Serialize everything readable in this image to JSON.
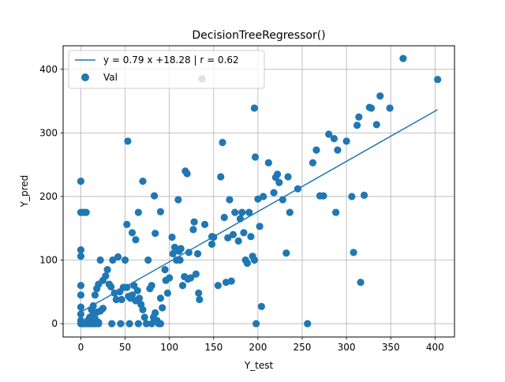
{
  "chart_data": {
    "type": "scatter",
    "title": "DecisionTreeRegressor()",
    "xlabel": "Y_test",
    "ylabel": "Y_pred",
    "xlim": [
      -20,
      422
    ],
    "ylim": [
      -21,
      437
    ],
    "xticks": [
      0,
      50,
      100,
      150,
      200,
      250,
      300,
      350,
      400
    ],
    "yticks": [
      0,
      100,
      200,
      300,
      400
    ],
    "grid": true,
    "legend_position": "top-left",
    "colors": {
      "series": "#1f77b4",
      "grid": "#b0b0b0"
    },
    "series": [
      {
        "name": "y = 0.79 x +18.28 | r = 0.62",
        "kind": "line",
        "x": [
          0,
          403
        ],
        "y": [
          18.28,
          336.65
        ]
      },
      {
        "name": "Val",
        "kind": "scatter",
        "points": [
          [
            0,
            224
          ],
          [
            0,
            175
          ],
          [
            3,
            175
          ],
          [
            6,
            175
          ],
          [
            0,
            116
          ],
          [
            0,
            106
          ],
          [
            0,
            60
          ],
          [
            0,
            45
          ],
          [
            0,
            26
          ],
          [
            0,
            15
          ],
          [
            0,
            5
          ],
          [
            0,
            0
          ],
          [
            2,
            0
          ],
          [
            4,
            0
          ],
          [
            6,
            0
          ],
          [
            8,
            0
          ],
          [
            10,
            0
          ],
          [
            12,
            0
          ],
          [
            14,
            0
          ],
          [
            16,
            0
          ],
          [
            18,
            0
          ],
          [
            20,
            0
          ],
          [
            8,
            5
          ],
          [
            10,
            10
          ],
          [
            12,
            22
          ],
          [
            14,
            15
          ],
          [
            16,
            8
          ],
          [
            18,
            18
          ],
          [
            20,
            2
          ],
          [
            22,
            20
          ],
          [
            25,
            24
          ],
          [
            14,
            28
          ],
          [
            16,
            45
          ],
          [
            18,
            55
          ],
          [
            20,
            62
          ],
          [
            22,
            100
          ],
          [
            25,
            68
          ],
          [
            28,
            75
          ],
          [
            30,
            85
          ],
          [
            32,
            62
          ],
          [
            34,
            58
          ],
          [
            36,
            100
          ],
          [
            38,
            48
          ],
          [
            40,
            38
          ],
          [
            42,
            105
          ],
          [
            44,
            50
          ],
          [
            46,
            38
          ],
          [
            48,
            57
          ],
          [
            50,
            100
          ],
          [
            52,
            57
          ],
          [
            54,
            43
          ],
          [
            56,
            40
          ],
          [
            58,
            45
          ],
          [
            60,
            60
          ],
          [
            62,
            36
          ],
          [
            64,
            52
          ],
          [
            66,
            40
          ],
          [
            68,
            30
          ],
          [
            70,
            22
          ],
          [
            72,
            10
          ],
          [
            74,
            0
          ],
          [
            76,
            100
          ],
          [
            78,
            55
          ],
          [
            80,
            60
          ],
          [
            82,
            10
          ],
          [
            84,
            17
          ],
          [
            86,
            5
          ],
          [
            88,
            0
          ],
          [
            90,
            40
          ],
          [
            92,
            25
          ],
          [
            35,
            0
          ],
          [
            45,
            0
          ],
          [
            55,
            0
          ],
          [
            65,
            0
          ],
          [
            80,
            0
          ],
          [
            90,
            0
          ],
          [
            53,
            287
          ],
          [
            52,
            156
          ],
          [
            58,
            143
          ],
          [
            62,
            132
          ],
          [
            65,
            175
          ],
          [
            70,
            224
          ],
          [
            83,
            201
          ],
          [
            84,
            142
          ],
          [
            90,
            176
          ],
          [
            95,
            85
          ],
          [
            96,
            68
          ],
          [
            98,
            48
          ],
          [
            100,
            72
          ],
          [
            103,
            136
          ],
          [
            104,
            110
          ],
          [
            106,
            120
          ],
          [
            108,
            100
          ],
          [
            110,
            195
          ],
          [
            111,
            114
          ],
          [
            112,
            100
          ],
          [
            113,
            118
          ],
          [
            115,
            60
          ],
          [
            117,
            74
          ],
          [
            118,
            240
          ],
          [
            120,
            236
          ],
          [
            121,
            70
          ],
          [
            122,
            112
          ],
          [
            124,
            72
          ],
          [
            127,
            148
          ],
          [
            128,
            160
          ],
          [
            130,
            78
          ],
          [
            132,
            110
          ],
          [
            133,
            48
          ],
          [
            134,
            38
          ],
          [
            137,
            385
          ],
          [
            140,
            156
          ],
          [
            148,
            137
          ],
          [
            148,
            125
          ],
          [
            150,
            136
          ],
          [
            155,
            60
          ],
          [
            158,
            231
          ],
          [
            160,
            285
          ],
          [
            162,
            167
          ],
          [
            164,
            65
          ],
          [
            166,
            135
          ],
          [
            168,
            195
          ],
          [
            170,
            67
          ],
          [
            172,
            140
          ],
          [
            174,
            175
          ],
          [
            178,
            130
          ],
          [
            180,
            165
          ],
          [
            182,
            175
          ],
          [
            184,
            143
          ],
          [
            186,
            100
          ],
          [
            188,
            95
          ],
          [
            190,
            175
          ],
          [
            192,
            137
          ],
          [
            194,
            106
          ],
          [
            196,
            100
          ],
          [
            196,
            339
          ],
          [
            197,
            262
          ],
          [
            198,
            0
          ],
          [
            200,
            196
          ],
          [
            202,
            153
          ],
          [
            204,
            27
          ],
          [
            206,
            200
          ],
          [
            212,
            253
          ],
          [
            218,
            206
          ],
          [
            220,
            230
          ],
          [
            222,
            235
          ],
          [
            224,
            222
          ],
          [
            228,
            195
          ],
          [
            232,
            111
          ],
          [
            234,
            231
          ],
          [
            236,
            175
          ],
          [
            245,
            212
          ],
          [
            256,
            0
          ],
          [
            262,
            253
          ],
          [
            266,
            273
          ],
          [
            270,
            201
          ],
          [
            274,
            201
          ],
          [
            280,
            298
          ],
          [
            286,
            291
          ],
          [
            288,
            175
          ],
          [
            290,
            273
          ],
          [
            300,
            287
          ],
          [
            306,
            200
          ],
          [
            308,
            112
          ],
          [
            312,
            312
          ],
          [
            314,
            325
          ],
          [
            316,
            65
          ],
          [
            320,
            202
          ],
          [
            326,
            340
          ],
          [
            328,
            339
          ],
          [
            334,
            313
          ],
          [
            338,
            358
          ],
          [
            349,
            339
          ],
          [
            364,
            417
          ],
          [
            403,
            384
          ]
        ]
      }
    ]
  }
}
